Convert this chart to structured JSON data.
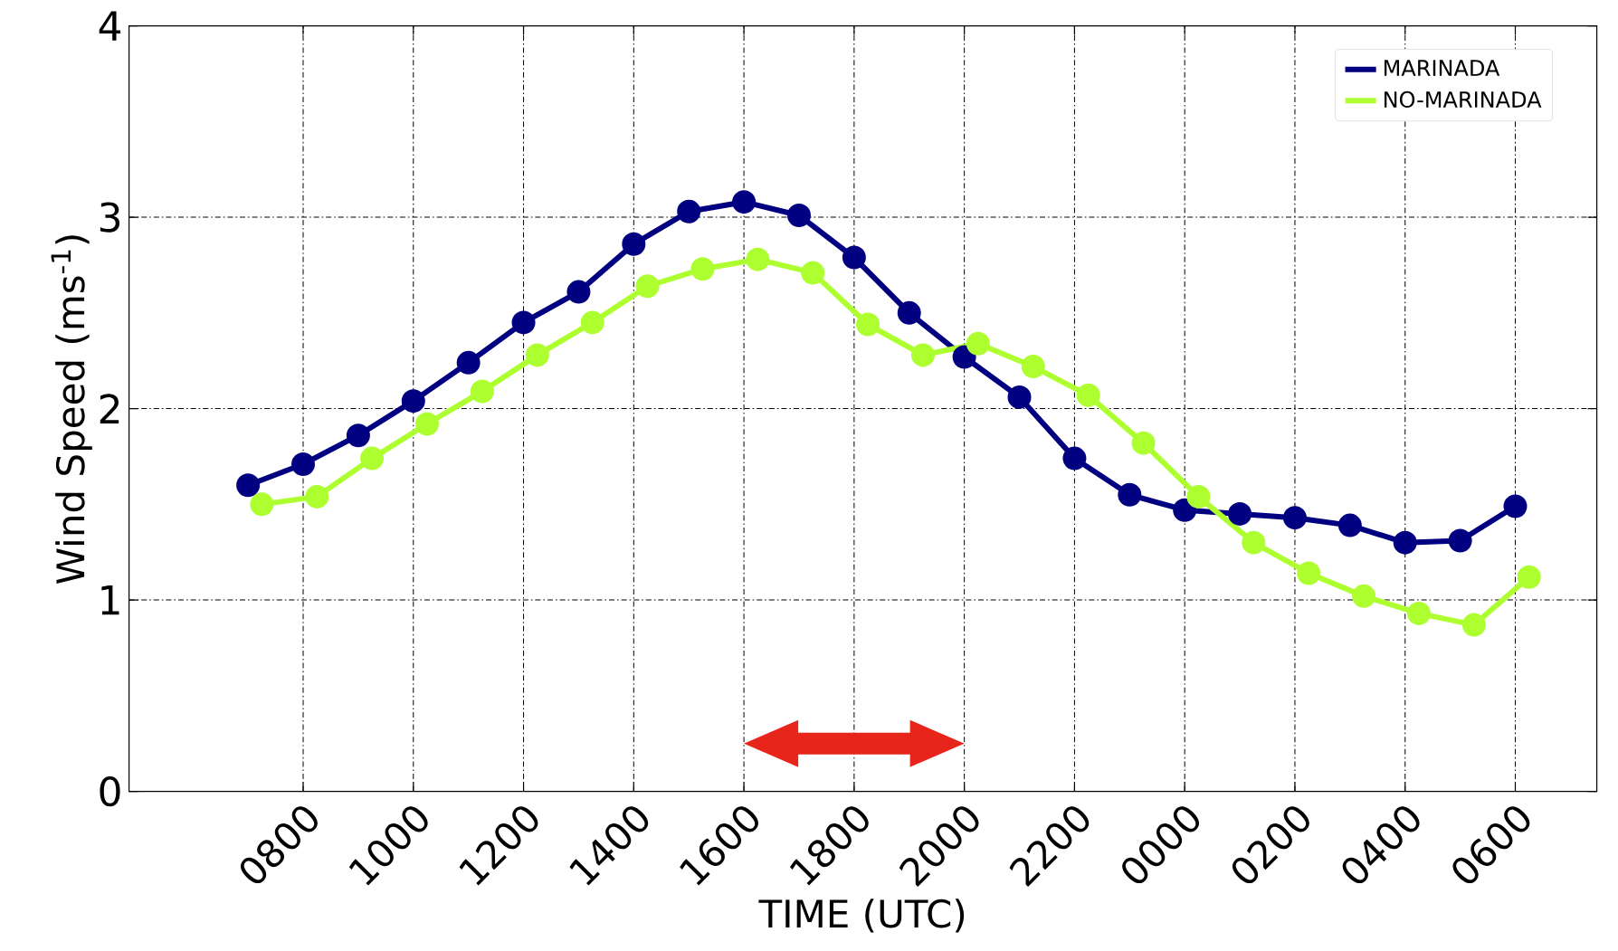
{
  "chart_data": {
    "type": "line",
    "xlabel": "TIME (UTC)",
    "ylabel": "Wind Speed (ms$^{-1}$)",
    "categories": [
      null,
      "0800",
      null,
      "1000",
      null,
      "1200",
      null,
      "1400",
      null,
      "1600",
      null,
      "1800",
      null,
      "2000",
      null,
      "2200",
      null,
      "0000",
      null,
      "0200",
      null,
      "0400",
      null,
      "0600"
    ],
    "ylim": [
      0,
      4
    ],
    "yticks": [
      0,
      1,
      2,
      3,
      4
    ],
    "grid": true,
    "legend": "top right",
    "marker": "circle",
    "line_style": "solid",
    "series": [
      {
        "name": "MARINADA",
        "color": "#000080",
        "values": [
          1.6,
          1.71,
          1.86,
          2.04,
          2.24,
          2.45,
          2.61,
          2.86,
          3.03,
          3.08,
          3.01,
          2.79,
          2.5,
          2.27,
          2.06,
          1.74,
          1.55,
          1.47,
          1.45,
          1.43,
          1.39,
          1.3,
          1.31,
          1.49
        ]
      },
      {
        "name": "NO-MARINADA",
        "color": "#adff2f",
        "values": [
          1.5,
          1.54,
          1.74,
          1.92,
          2.09,
          2.28,
          2.45,
          2.64,
          2.73,
          2.78,
          2.71,
          2.44,
          2.28,
          2.34,
          2.22,
          2.07,
          1.82,
          1.54,
          1.3,
          1.14,
          1.02,
          0.93,
          0.87,
          1.12
        ]
      }
    ]
  }
}
